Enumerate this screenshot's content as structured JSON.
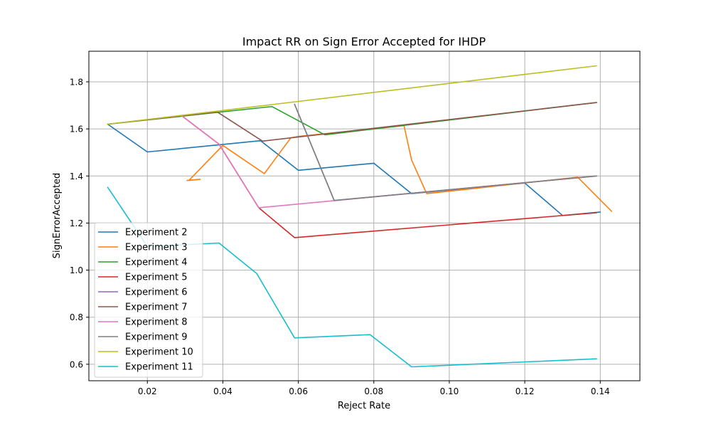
{
  "chart_data": {
    "type": "line",
    "title": "Impact RR on Sign Error Accepted for IHDP",
    "xlabel": "Reject Rate",
    "ylabel": "SignErrorAccepted",
    "xlim": [
      0.0045,
      0.1505
    ],
    "ylim": [
      0.53,
      1.93
    ],
    "xticks": [
      0.02,
      0.04,
      0.06,
      0.08,
      0.1,
      0.12,
      0.14
    ],
    "xtick_labels": [
      "0.02",
      "0.04",
      "0.06",
      "0.08",
      "0.10",
      "0.12",
      "0.14"
    ],
    "yticks": [
      0.6,
      0.8,
      1.0,
      1.2,
      1.4,
      1.6,
      1.8
    ],
    "ytick_labels": [
      "0.6",
      "0.8",
      "1.0",
      "1.2",
      "1.4",
      "1.6",
      "1.8"
    ],
    "grid": true,
    "legend_position": "lower-left",
    "series": [
      {
        "name": "Experiment 2",
        "color": "#1f77b4",
        "x": [
          0.0095,
          0.02,
          0.05,
          0.06,
          0.08,
          0.09,
          0.12,
          0.13,
          0.14
        ],
        "y": [
          1.62,
          1.502,
          1.55,
          1.424,
          1.454,
          1.325,
          1.37,
          1.232,
          1.247
        ]
      },
      {
        "name": "Experiment 3",
        "color": "#ff7f0e",
        "x": [
          0.0305,
          0.034,
          0.031,
          0.04,
          0.051,
          0.058,
          0.06,
          0.088,
          0.09,
          0.094,
          0.134,
          0.143
        ],
        "y": [
          1.381,
          1.386,
          1.381,
          1.53,
          1.41,
          1.562,
          1.568,
          1.614,
          1.468,
          1.325,
          1.395,
          1.25
        ]
      },
      {
        "name": "Experiment 4",
        "color": "#2ca02c",
        "x": [
          0.0095,
          0.053,
          0.067,
          0.139
        ],
        "y": [
          1.62,
          1.695,
          1.575,
          1.712
        ]
      },
      {
        "name": "Experiment 5",
        "color": "#d62728",
        "x": [
          0.029,
          0.039,
          0.0495,
          0.059,
          0.139
        ],
        "y": [
          1.657,
          1.535,
          1.265,
          1.138,
          1.244
        ]
      },
      {
        "name": "Experiment 6",
        "color": "#9467bd",
        "x": [
          0.059,
          0.0695,
          0.139
        ],
        "y": [
          1.705,
          1.296,
          1.4
        ]
      },
      {
        "name": "Experiment 7",
        "color": "#8c564b",
        "x": [
          0.0095,
          0.0385,
          0.0505,
          0.139
        ],
        "y": [
          1.62,
          1.672,
          1.548,
          1.712
        ]
      },
      {
        "name": "Experiment 8",
        "color": "#e377c2",
        "x": [
          0.029,
          0.039,
          0.0495,
          0.139
        ],
        "y": [
          1.657,
          1.535,
          1.265,
          1.4
        ]
      },
      {
        "name": "Experiment 9",
        "color": "#7f7f7f",
        "x": [
          0.059,
          0.0695,
          0.139
        ],
        "y": [
          1.705,
          1.296,
          1.4
        ]
      },
      {
        "name": "Experiment 10",
        "color": "#bcbd22",
        "x": [
          0.0095,
          0.139
        ],
        "y": [
          1.62,
          1.868
        ]
      },
      {
        "name": "Experiment 11",
        "color": "#17becf",
        "x": [
          0.0095,
          0.02,
          0.039,
          0.049,
          0.059,
          0.079,
          0.09,
          0.139
        ],
        "y": [
          1.352,
          1.1,
          1.115,
          0.985,
          0.712,
          0.726,
          0.589,
          0.623
        ]
      }
    ]
  }
}
